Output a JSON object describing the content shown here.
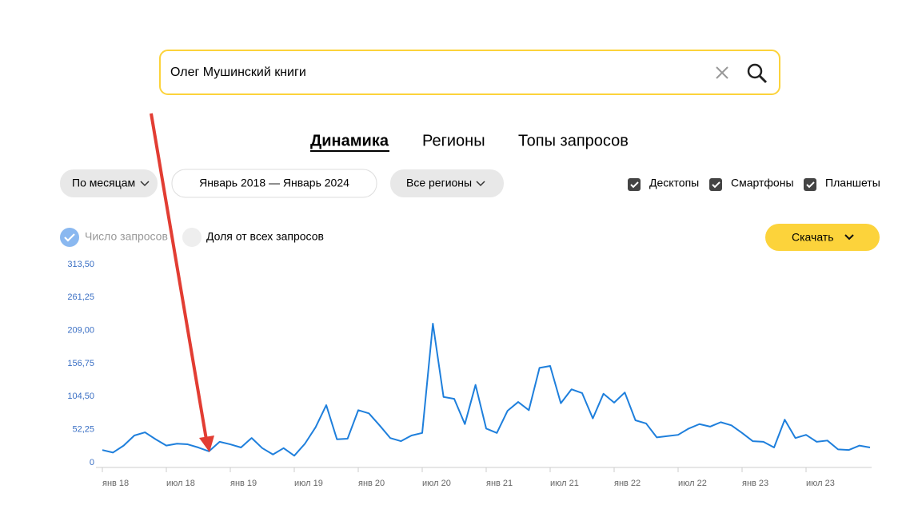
{
  "search": {
    "query": "Олег Мушинский книги"
  },
  "tabs": [
    "Динамика",
    "Регионы",
    "Топы запросов"
  ],
  "filters": {
    "period_group": "По месяцам",
    "date_range": "Январь 2018 — Январь 2024",
    "regions": "Все регионы",
    "devices": [
      "Десктопы",
      "Смартфоны",
      "Планшеты"
    ]
  },
  "toggles": [
    "Число запросов",
    "Доля от всех запросов"
  ],
  "download": "Скачать",
  "chart_data": {
    "type": "line",
    "categories": [
      "янв 18",
      null,
      null,
      null,
      null,
      null,
      "июл 18",
      null,
      null,
      null,
      null,
      null,
      "янв 19",
      null,
      null,
      null,
      null,
      null,
      "июл 19",
      null,
      null,
      null,
      null,
      null,
      "янв 20",
      null,
      null,
      null,
      null,
      null,
      "июл 20",
      null,
      null,
      null,
      null,
      null,
      "янв 21",
      null,
      null,
      null,
      null,
      null,
      "июл 21",
      null,
      null,
      null,
      null,
      null,
      "янв 22",
      null,
      null,
      null,
      null,
      null,
      "июл 22",
      null,
      null,
      null,
      null,
      null,
      "янв 23",
      null,
      null,
      null,
      null,
      null,
      "июл 23",
      null,
      null,
      null,
      null,
      null,
      null
    ],
    "series": [
      {
        "name": "Число запросов",
        "color": "#1e7fdc",
        "values": [
          20,
          16,
          27,
          43,
          48,
          37,
          27,
          30,
          29,
          24,
          18,
          33,
          29,
          24,
          39,
          23,
          13,
          23,
          11,
          30,
          56,
          91,
          37,
          38,
          83,
          78,
          59,
          39,
          34,
          43,
          47,
          220,
          104,
          101,
          61,
          123,
          54,
          47,
          82,
          96,
          83,
          150,
          153,
          94,
          116,
          110,
          70,
          109,
          95,
          111,
          67,
          62,
          40,
          42,
          44,
          54,
          61,
          57,
          64,
          59,
          47,
          34,
          33,
          24,
          68,
          39,
          44,
          33,
          35,
          21,
          20,
          27,
          24
        ]
      }
    ],
    "ylim": [
      0,
      313.5
    ],
    "yticks": [
      0,
      {
        "value": 52.25,
        "label": "52,25"
      },
      {
        "value": 104.5,
        "label": "104,50"
      },
      {
        "value": 156.75,
        "label": "156,75"
      },
      {
        "value": 209,
        "label": "209,00"
      },
      {
        "value": 261.25,
        "label": "261,25"
      },
      {
        "value": 313.5,
        "label": "313,50"
      }
    ]
  }
}
